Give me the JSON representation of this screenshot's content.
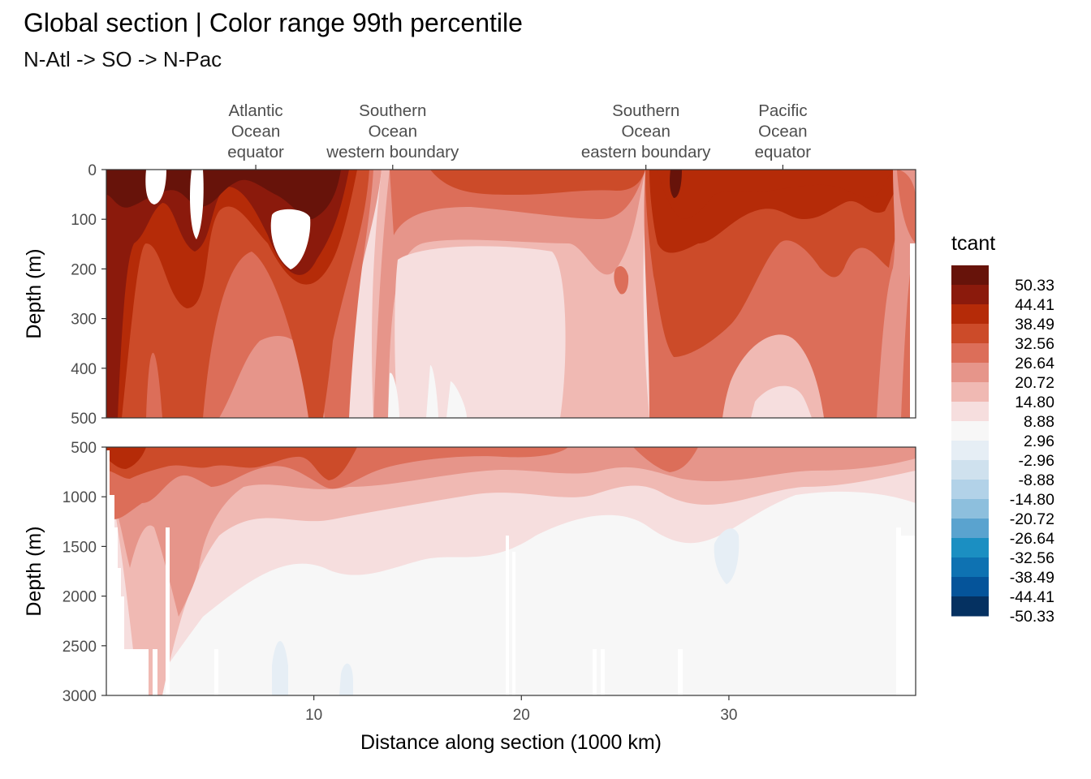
{
  "title": "Global section | Color range 99th percentile",
  "subtitle": "N-Atl -> SO -> N-Pac",
  "chart_data": {
    "type": "heatmap",
    "xlabel": "Distance along section (1000 km)",
    "ylabel": "Depth (m)",
    "xlim": [
      0,
      39
    ],
    "x_ticks": [
      "10",
      "20",
      "30"
    ],
    "x_tick_values": [
      10,
      20,
      30
    ],
    "top_axis_annotations": [
      {
        "x": 7.2,
        "lines": [
          "Atlantic",
          "Ocean",
          "equator"
        ]
      },
      {
        "x": 13.8,
        "lines": [
          "Southern",
          "Ocean",
          "western boundary"
        ]
      },
      {
        "x": 26.0,
        "lines": [
          "Southern",
          "Ocean",
          "eastern boundary"
        ]
      },
      {
        "x": 32.6,
        "lines": [
          "Pacific",
          "Ocean",
          "equator"
        ]
      }
    ],
    "panels": [
      {
        "name": "upper",
        "ylim": [
          0,
          500
        ],
        "y_ticks": [
          "0",
          "100",
          "200",
          "300",
          "400",
          "500"
        ],
        "y_tick_values": [
          0,
          100,
          200,
          300,
          400,
          500
        ]
      },
      {
        "name": "lower",
        "ylim": [
          500,
          3000
        ],
        "y_ticks": [
          "500",
          "1000",
          "1500",
          "2000",
          "2500",
          "3000"
        ],
        "y_tick_values": [
          500,
          1000,
          1500,
          2000,
          2500,
          3000
        ]
      }
    ],
    "legend": {
      "title": "tcant",
      "placement": "right",
      "labels": [
        "50.33",
        "44.41",
        "38.49",
        "32.56",
        "26.64",
        "20.72",
        "14.80",
        "8.88",
        "2.96",
        "-2.96",
        "-8.88",
        "-14.80",
        "-20.72",
        "-26.64",
        "-32.56",
        "-38.49",
        "-44.41",
        "-50.33"
      ],
      "colors": [
        "#67130a",
        "#8b1a0c",
        "#b52b08",
        "#cc4b29",
        "#dc6e59",
        "#e6958a",
        "#f0b9b3",
        "#f6dede",
        "#f7f7f7",
        "#e6eef5",
        "#cfe1ee",
        "#b2d2e8",
        "#8dbfdd",
        "#5aa3cf",
        "#1b8fc2",
        "#0e72b2",
        "#05549a",
        "#053161"
      ]
    }
  }
}
